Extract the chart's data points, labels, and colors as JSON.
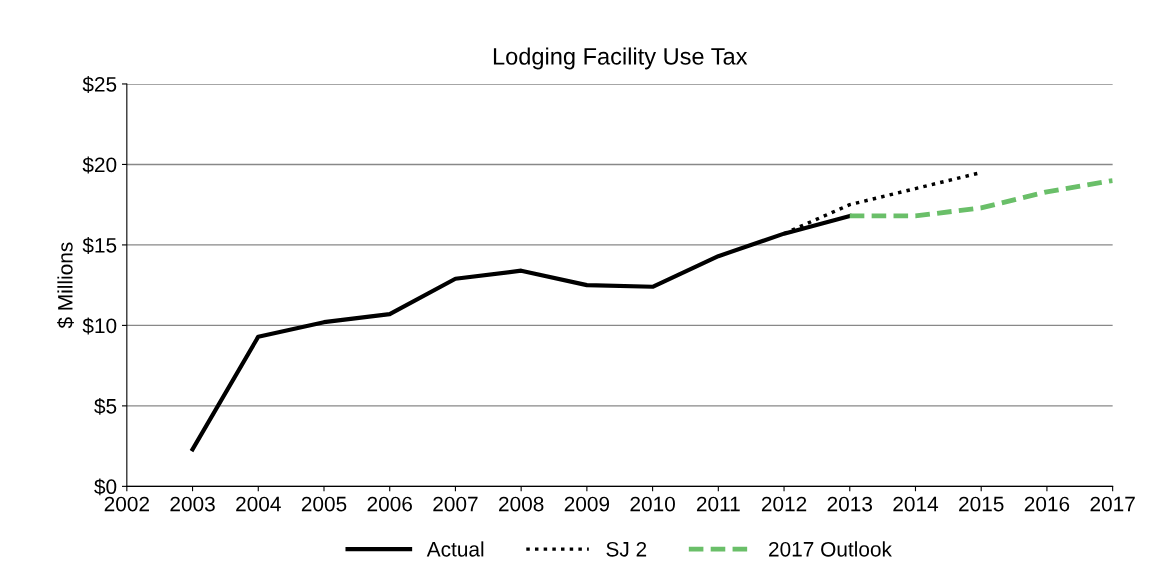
{
  "chart_data": {
    "type": "line",
    "title": "Lodging Facility Use Tax",
    "ylabel": "$ Millions",
    "series": [
      {
        "name": "Actual",
        "color": "#000000",
        "line_style": "solid",
        "x": [
          2003,
          2004,
          2005,
          2006,
          2007,
          2008,
          2009,
          2010,
          2011,
          2012,
          2013
        ],
        "values": [
          2.3,
          9.3,
          10.2,
          10.7,
          12.9,
          13.4,
          12.5,
          12.4,
          14.3,
          15.7,
          16.8
        ]
      },
      {
        "name": "SJ 2",
        "color": "#000000",
        "line_style": "dotted",
        "x": [
          2012,
          2013,
          2014,
          2015
        ],
        "values": [
          15.7,
          17.5,
          18.5,
          19.5
        ]
      },
      {
        "name": "2017 Outlook",
        "color": "#6abf69",
        "line_style": "dashed",
        "x": [
          2013,
          2014,
          2015,
          2016,
          2017
        ],
        "values": [
          16.8,
          16.8,
          17.3,
          18.3,
          19.0
        ]
      }
    ],
    "xlim": [
      2002,
      2017
    ],
    "xticks": [
      2002,
      2003,
      2004,
      2005,
      2006,
      2007,
      2008,
      2009,
      2010,
      2011,
      2012,
      2013,
      2014,
      2015,
      2016,
      2017
    ],
    "ylim": [
      0,
      25
    ],
    "yticks": [
      {
        "value": 0,
        "label": "$0"
      },
      {
        "value": 5,
        "label": "$5"
      },
      {
        "value": 10,
        "label": "$10"
      },
      {
        "value": 15,
        "label": "$15"
      },
      {
        "value": 20,
        "label": "$20"
      },
      {
        "value": 25,
        "label": "$25"
      }
    ],
    "grid": "y",
    "legend": "bottom"
  }
}
